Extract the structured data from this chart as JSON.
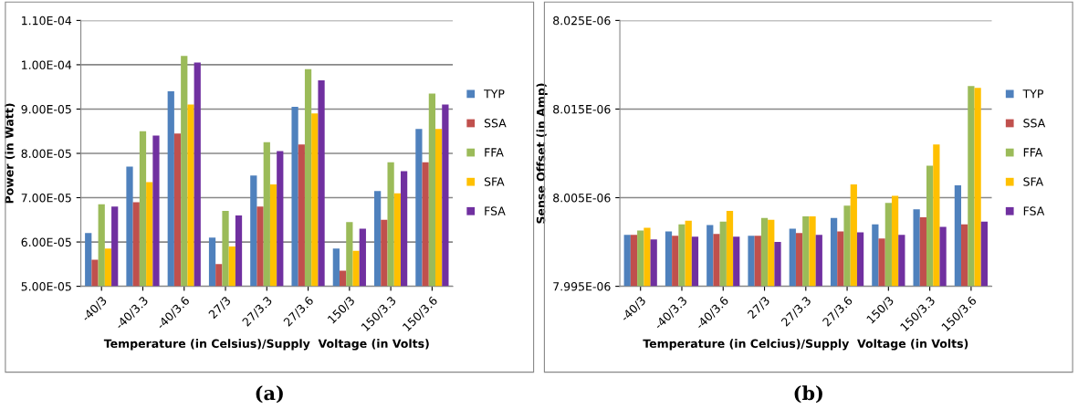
{
  "chart_data": [
    {
      "type": "bar",
      "xlabel": "Temperature (in Celsius)/Supply  Voltage (in Volts)",
      "ylabel": "Power (in Watt)",
      "categories": [
        "-40/3",
        "-40/3.3",
        "-40/3.6",
        "27/3",
        "27/3.3",
        "27/3.6",
        "150/3",
        "150/3.3",
        "150/3.6"
      ],
      "series": [
        {
          "name": "TYP",
          "color": "#4f81bd",
          "values": [
            6.2e-05,
            7.7e-05,
            9.4e-05,
            6.1e-05,
            7.5e-05,
            9.05e-05,
            5.85e-05,
            7.15e-05,
            8.55e-05
          ]
        },
        {
          "name": "SSA",
          "color": "#c0504d",
          "values": [
            5.6e-05,
            6.9e-05,
            8.45e-05,
            5.5e-05,
            6.8e-05,
            8.2e-05,
            5.35e-05,
            6.5e-05,
            7.8e-05
          ]
        },
        {
          "name": "FFA",
          "color": "#9bbb59",
          "values": [
            6.85e-05,
            8.5e-05,
            0.000102,
            6.7e-05,
            8.25e-05,
            9.9e-05,
            6.45e-05,
            7.8e-05,
            9.35e-05
          ]
        },
        {
          "name": "SFA",
          "color": "#ffc000",
          "values": [
            5.85e-05,
            7.35e-05,
            9.1e-05,
            5.9e-05,
            7.3e-05,
            8.9e-05,
            5.8e-05,
            7.1e-05,
            8.55e-05
          ]
        },
        {
          "name": "FSA",
          "color": "#7030a0",
          "values": [
            6.8e-05,
            8.4e-05,
            0.0001005,
            6.6e-05,
            8.05e-05,
            9.65e-05,
            6.3e-05,
            7.6e-05,
            9.1e-05
          ]
        }
      ],
      "ylim": [
        5e-05,
        0.00011
      ],
      "yticks": [
        {
          "value": 5e-05,
          "label": "5.00E-05"
        },
        {
          "value": 6e-05,
          "label": "6.00E-05"
        },
        {
          "value": 7e-05,
          "label": "7.00E-05"
        },
        {
          "value": 8e-05,
          "label": "8.00E-05"
        },
        {
          "value": 9e-05,
          "label": "9.00E-05"
        },
        {
          "value": 0.0001,
          "label": "1.00E-04"
        },
        {
          "value": 0.00011,
          "label": "1.10E-04"
        }
      ],
      "grid": "y",
      "legend": "right",
      "annotations": [
        "(a)"
      ]
    },
    {
      "type": "bar",
      "xlabel": "Temperature (in Celcius)/Supply  Voltage (in Volts)",
      "ylabel": "Sense Offset (in Amp)",
      "categories": [
        "-40/3",
        "-40/3.3",
        "-40/3.6",
        "27/3",
        "27/3.3",
        "27/3.6",
        "150/3",
        "150/3.3",
        "150/3.6"
      ],
      "series": [
        {
          "name": "TYP",
          "color": "#4f81bd",
          "values": [
            8.0008e-06,
            8.0012e-06,
            8.0019e-06,
            8.0007e-06,
            8.0015e-06,
            8.0027e-06,
            8.002e-06,
            8.0037e-06,
            8.0064e-06
          ]
        },
        {
          "name": "SSA",
          "color": "#c0504d",
          "values": [
            8.0008e-06,
            8.0007e-06,
            8.0009e-06,
            8.0007e-06,
            8.001e-06,
            8.0012e-06,
            8.0004e-06,
            8.0028e-06,
            8.002e-06
          ]
        },
        {
          "name": "FFA",
          "color": "#9bbb59",
          "values": [
            8.0013e-06,
            8.002e-06,
            8.0023e-06,
            8.0027e-06,
            8.0029e-06,
            8.0041e-06,
            8.0044e-06,
            8.0086e-06,
            8.0176e-06
          ]
        },
        {
          "name": "SFA",
          "color": "#ffc000",
          "values": [
            8.0016e-06,
            8.0024e-06,
            8.0035e-06,
            8.0025e-06,
            8.0029e-06,
            8.0065e-06,
            8.0052e-06,
            8.011e-06,
            8.0174e-06
          ]
        },
        {
          "name": "FSA",
          "color": "#7030a0",
          "values": [
            8.0003e-06,
            8.0006e-06,
            8.0006e-06,
            8e-06,
            8.0008e-06,
            8.0011e-06,
            8.0008e-06,
            8.0017e-06,
            8.0023e-06
          ]
        }
      ],
      "ylim": [
        7.995e-06,
        8.025e-06
      ],
      "yticks": [
        {
          "value": 7.995e-06,
          "label": "7.995E-06"
        },
        {
          "value": 8.005e-06,
          "label": "8.005E-06"
        },
        {
          "value": 8.015e-06,
          "label": "8.015E-06"
        },
        {
          "value": 8.025e-06,
          "label": "8.025E-06"
        }
      ],
      "grid": "y",
      "legend": "right",
      "annotations": [
        "(b)"
      ]
    }
  ]
}
